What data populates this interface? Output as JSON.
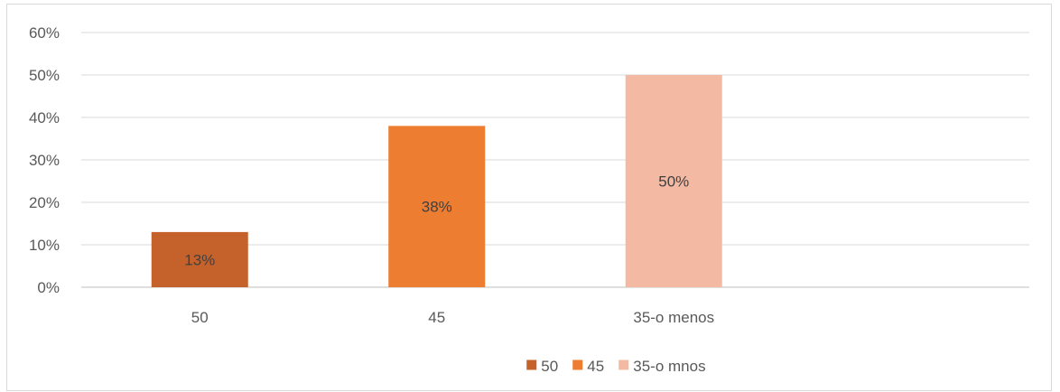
{
  "chart_data": {
    "type": "bar",
    "categories": [
      "50",
      "45",
      "35-o menos"
    ],
    "values": [
      13,
      38,
      50
    ],
    "data_labels": [
      "13%",
      "38%",
      "50%"
    ],
    "colors": [
      "#c5622b",
      "#ed7d31",
      "#f4b9a3"
    ],
    "ylim": [
      0,
      60
    ],
    "y_ticks": [
      0,
      10,
      20,
      30,
      40,
      50,
      60
    ],
    "y_tick_labels": [
      "0%",
      "10%",
      "20%",
      "30%",
      "40%",
      "50%",
      "60%"
    ],
    "grid": true,
    "legend_position": "bottom",
    "legend": [
      {
        "label": "50",
        "color": "#c5622b"
      },
      {
        "label": "45",
        "color": "#ed7d31"
      },
      {
        "label": "35-o mnos",
        "color": "#f4b9a3"
      }
    ],
    "title": "",
    "xlabel": "",
    "ylabel": ""
  }
}
